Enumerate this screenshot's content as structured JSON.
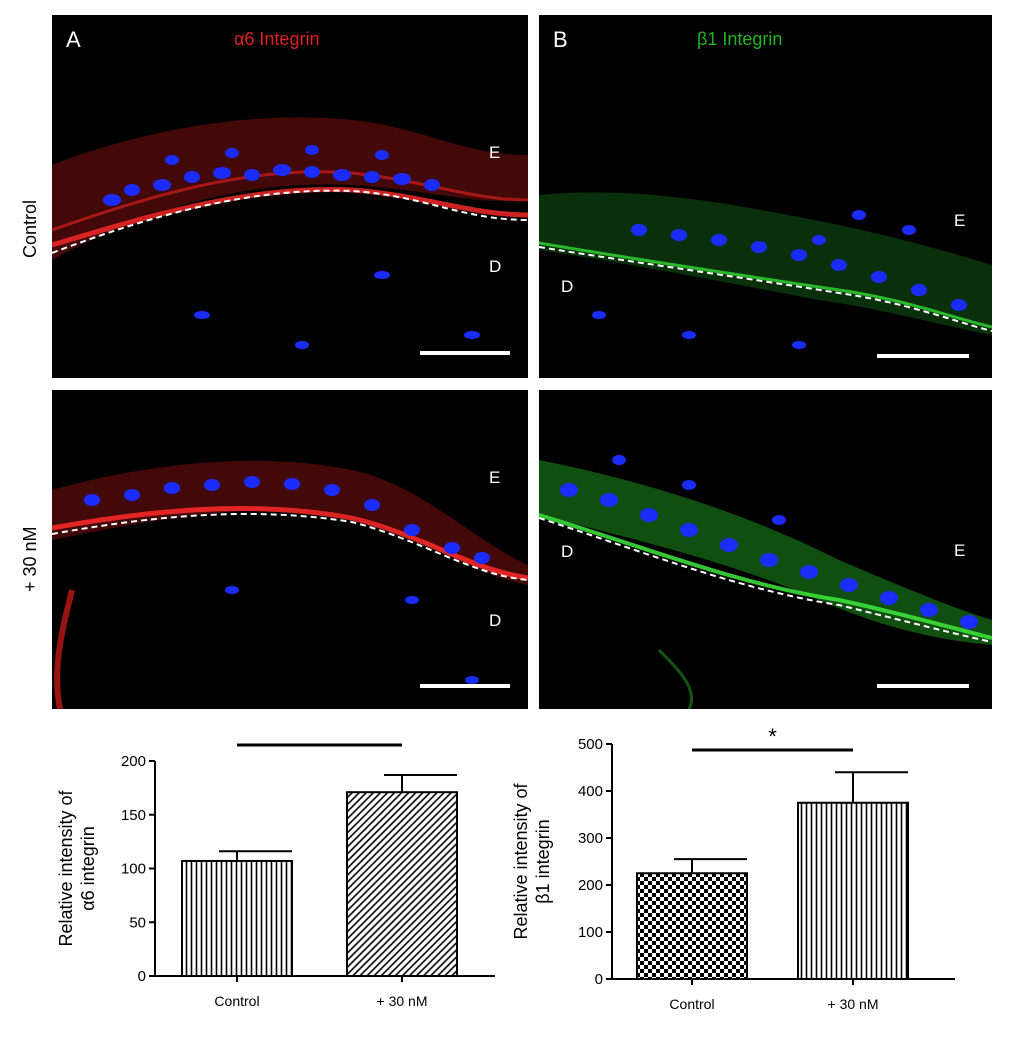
{
  "rows": [
    "Control",
    "+ 30 nM"
  ],
  "panels": {
    "A": {
      "letter": "A",
      "title": "α6 Integrin",
      "color": "#e02020",
      "control": {
        "E": "E",
        "D": "D"
      },
      "treated": {
        "E": "E",
        "D": "D"
      }
    },
    "B": {
      "letter": "B",
      "title": "β1  Integrin",
      "color": "#22b422",
      "control": {
        "E": "E",
        "D": "D"
      },
      "treated": {
        "E": "E",
        "D": "D"
      }
    }
  },
  "nucleus_color": "#1a2cff",
  "chart_data": [
    {
      "type": "bar",
      "categories": [
        "Control",
        "+ 30 nM"
      ],
      "values": [
        107,
        171
      ],
      "errors": [
        9,
        16
      ],
      "ylabel_line1": "Relative intensity of",
      "ylabel_line2": "α6 integrin",
      "ylim": [
        0,
        200
      ],
      "yticks": [
        "0",
        "50",
        "100",
        "150",
        "200"
      ],
      "patterns": [
        "vertical-stripes",
        "diagonal-stripes"
      ],
      "significance": "**"
    },
    {
      "type": "bar",
      "categories": [
        "Control",
        "+ 30 nM"
      ],
      "values": [
        225,
        375
      ],
      "errors": [
        30,
        65
      ],
      "ylabel_line1": "Relative intensity of",
      "ylabel_line2": "β1 integrin",
      "ylim": [
        0,
        500
      ],
      "yticks": [
        "0",
        "100",
        "200",
        "300",
        "400",
        "500"
      ],
      "patterns": [
        "checkerboard",
        "vertical-stripes"
      ],
      "significance": "*"
    }
  ]
}
